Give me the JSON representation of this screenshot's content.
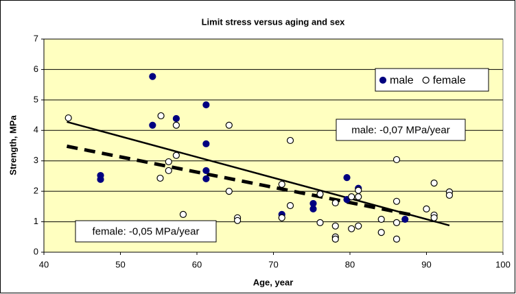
{
  "chart_data": {
    "type": "scatter",
    "title": "Limit stress versus aging and sex",
    "x_label": "Age, year",
    "y_label": "Strength, MPa",
    "xlim": [
      40,
      100
    ],
    "xticks": [
      40,
      50,
      60,
      70,
      80,
      90,
      100
    ],
    "ylim": [
      0,
      7
    ],
    "yticks": [
      0,
      1,
      2,
      3,
      4,
      5,
      6,
      7
    ],
    "grid": true,
    "background": "#ffffc0",
    "legend": "upper right",
    "series": [
      {
        "name": "male",
        "color": "#000080",
        "filled": true,
        "x": [
          54.2,
          61.2,
          61.2,
          61.2,
          61.2,
          47.4,
          47.4,
          54.2,
          57.3,
          75.2,
          75.2,
          71.1,
          79.6,
          79.6,
          81.1,
          87.2
        ],
        "values": [
          5.77,
          4.84,
          3.56,
          2.68,
          2.41,
          2.52,
          2.39,
          4.17,
          4.39,
          1.6,
          1.42,
          1.24,
          2.45,
          1.73,
          2.1,
          1.08
        ]
      },
      {
        "name": "female",
        "color": "#000000",
        "filled": false,
        "x": [
          43.2,
          55.3,
          55.2,
          56.3,
          56.3,
          57.3,
          57.3,
          58.2,
          64.2,
          64.2,
          65.3,
          65.3,
          72.2,
          71.1,
          71.1,
          72.2,
          76.1,
          76.1,
          78.1,
          78.1,
          78.1,
          78.1,
          80.2,
          80.2,
          81.1,
          81.1,
          81.1,
          84.1,
          84.1,
          86.1,
          86.1,
          86.1,
          86.1,
          90.0,
          91.0,
          91.0,
          91.0,
          93.0,
          93.0
        ],
        "values": [
          4.41,
          4.48,
          2.43,
          2.97,
          2.68,
          4.17,
          3.18,
          1.24,
          4.17,
          2.0,
          1.13,
          1.04,
          3.67,
          2.23,
          1.13,
          1.53,
          1.91,
          0.97,
          1.62,
          0.86,
          0.5,
          0.43,
          1.82,
          0.77,
          2.03,
          1.82,
          0.86,
          1.08,
          0.65,
          3.04,
          1.67,
          0.97,
          0.43,
          1.42,
          2.27,
          1.22,
          1.13,
          1.98,
          1.87
        ]
      }
    ],
    "trendlines": [
      {
        "label": "male: -0,07 MPa/year",
        "style": "solid",
        "x": [
          43,
          93
        ],
        "values": [
          4.28,
          0.88
        ]
      },
      {
        "label": "female: -0,05 MPa/year",
        "style": "dashed",
        "x": [
          43,
          88
        ],
        "values": [
          3.48,
          1.23
        ]
      }
    ]
  }
}
